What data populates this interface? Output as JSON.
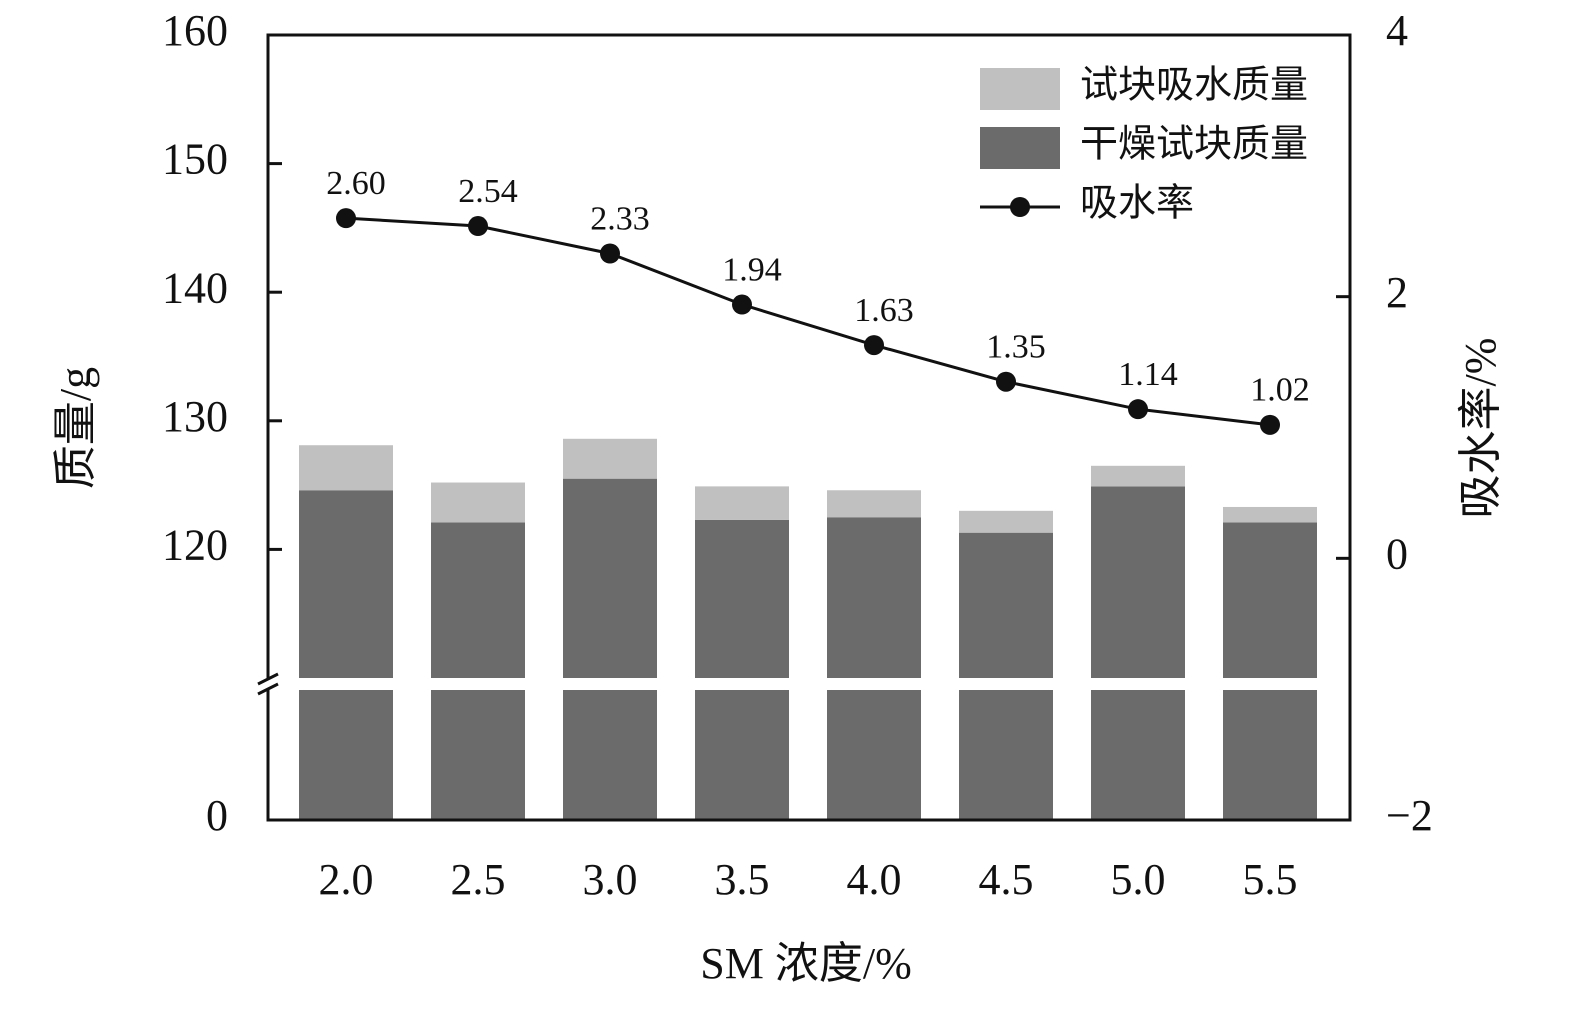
{
  "chart_data": {
    "type": "bar_line",
    "x_label": "SM 浓度/%",
    "y_label": "质量/g",
    "y2_label": "吸水率/%",
    "categories": [
      "2.0",
      "2.5",
      "3.0",
      "3.5",
      "4.0",
      "4.5",
      "5.0",
      "5.5"
    ],
    "series": [
      {
        "name": "干燥试块质量",
        "color": "#6b6b6b",
        "type": "bar",
        "stack": true,
        "values": [
          124.6,
          122.1,
          125.5,
          122.3,
          122.5,
          121.3,
          124.9,
          122.1
        ]
      },
      {
        "name": "试块吸水质量",
        "color": "#c0c0c0",
        "type": "bar",
        "stack": true,
        "values": [
          3.5,
          3.1,
          3.1,
          2.6,
          2.1,
          1.7,
          1.6,
          1.2
        ]
      },
      {
        "name": "吸水率",
        "color": "#111111",
        "type": "line",
        "axis": "y2",
        "values": [
          2.6,
          2.54,
          2.33,
          1.94,
          1.63,
          1.35,
          1.14,
          1.02
        ],
        "value_labels": [
          "2.60",
          "2.54",
          "2.33",
          "1.94",
          "1.63",
          "1.35",
          "1.14",
          "1.02"
        ]
      }
    ],
    "ylim": [
      0,
      160
    ],
    "yticks": [
      0,
      120,
      130,
      140,
      150,
      160
    ],
    "y_break": 110,
    "y2lim": [
      -2,
      4
    ],
    "y2ticks": [
      {
        "value": -2,
        "label": "−2"
      },
      0,
      2,
      4
    ],
    "legend": "upper right"
  }
}
